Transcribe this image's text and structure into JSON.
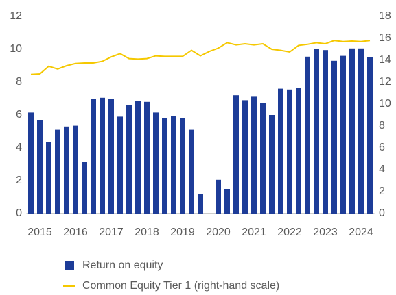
{
  "chart_data": {
    "type": "bar",
    "categories": [
      null,
      "2015",
      null,
      null,
      null,
      "2016",
      null,
      null,
      null,
      "2017",
      null,
      null,
      null,
      "2018",
      null,
      null,
      null,
      "2019",
      null,
      null,
      null,
      "2020",
      null,
      null,
      null,
      "2021",
      null,
      null,
      null,
      "2022",
      null,
      null,
      null,
      "2023",
      null,
      null,
      null,
      "2024",
      null
    ],
    "series": [
      {
        "name": "Return on equity",
        "color": "#1d3c98",
        "type": "bar",
        "values": [
          6.15,
          5.7,
          4.35,
          5.1,
          5.3,
          5.35,
          3.15,
          7.0,
          7.05,
          7.0,
          5.9,
          6.6,
          6.85,
          6.8,
          6.15,
          5.8,
          5.95,
          5.8,
          5.1,
          1.2,
          null,
          2.05,
          1.5,
          7.2,
          6.9,
          7.15,
          6.75,
          6.0,
          7.6,
          7.55,
          7.65,
          9.55,
          10.0,
          9.95,
          9.3,
          9.6,
          10.05,
          10.05,
          9.5
        ]
      },
      {
        "name": "Common Equity Tier 1 (right-hand scale)",
        "color": "#f5c800",
        "type": "line",
        "axis": "y2",
        "values": [
          12.7,
          12.75,
          13.45,
          13.2,
          13.5,
          13.7,
          13.75,
          13.75,
          13.9,
          14.3,
          14.6,
          14.15,
          14.1,
          14.15,
          14.4,
          14.35,
          14.35,
          14.35,
          14.9,
          14.4,
          14.8,
          15.1,
          15.6,
          15.4,
          15.5,
          15.4,
          15.5,
          15.0,
          14.9,
          14.75,
          15.35,
          15.45,
          15.6,
          15.5,
          15.8,
          15.7,
          15.75,
          15.7,
          15.8
        ]
      }
    ],
    "ylim": [
      0,
      12
    ],
    "yticks": [
      0,
      2,
      4,
      6,
      8,
      10,
      12
    ],
    "y2lim": [
      0,
      18
    ],
    "y2ticks": [
      0,
      2,
      4,
      6,
      8,
      10,
      12,
      14,
      16,
      18
    ],
    "grid": false,
    "legend": "bottom"
  }
}
